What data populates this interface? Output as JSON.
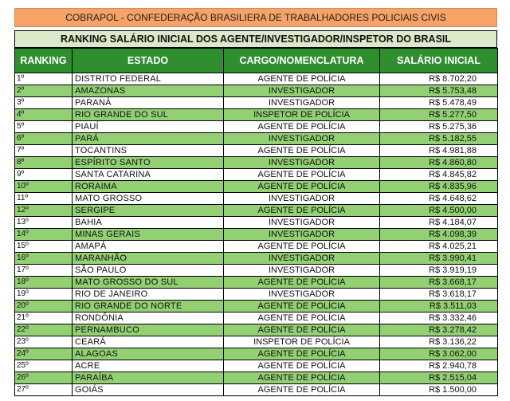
{
  "banner": "COBRAPOL - CONFEDERAÇÃO BRASILIERA DE TRABALHADORES POLICIAIS CIVIS",
  "subtitle": "RANKING SALÁRIO INICIAL DOS AGENTE/INVESTIGADOR/INSPETOR DO BRASIL",
  "headers": [
    "RANKING",
    "ESTADO",
    "CARGO/NOMENCLATURA",
    "SALÁRIO INICIAL"
  ],
  "colors": {
    "green_row": "#93cf73",
    "header": "#2f8f2f",
    "banner": "#f7a266",
    "subtitle": "#dbe8c9"
  },
  "rows": [
    {
      "rank": "1º",
      "estado": "DISTRITO FEDERAL",
      "cargo": "AGENTE DE POLÍCIA",
      "salario": "R$ 8.702,20"
    },
    {
      "rank": "2º",
      "estado": "AMAZONAS",
      "cargo": "INVESTIGADOR",
      "salario": "R$ 5.753,48"
    },
    {
      "rank": "3º",
      "estado": "PARANÁ",
      "cargo": "INVESTIGADOR",
      "salario": "R$ 5.478,49"
    },
    {
      "rank": "4º",
      "estado": "RIO GRANDE DO SUL",
      "cargo": "INSPETOR DE POLÍCIA",
      "salario": "R$ 5.277,50"
    },
    {
      "rank": "5º",
      "estado": "PIAUÍ",
      "cargo": "AGENTE DE POLÍCIA",
      "salario": "R$ 5.275,36"
    },
    {
      "rank": "6º",
      "estado": "PARÁ",
      "cargo": "INVESTIGADOR",
      "salario": "R$ 5.182,55"
    },
    {
      "rank": "7º",
      "estado": "TOCANTINS",
      "cargo": "AGENTE DE POLÍCIA",
      "salario": "R$ 4.981,88"
    },
    {
      "rank": "8º",
      "estado": "ESPÍRITO SANTO",
      "cargo": "INVESTIGADOR",
      "salario": "R$ 4.860,80"
    },
    {
      "rank": "9º",
      "estado": "SANTA CATARINA",
      "cargo": "AGENTE DE POLÍCIA",
      "salario": "R$ 4.845,82"
    },
    {
      "rank": "10º",
      "estado": "RORAIMA",
      "cargo": "AGENTE DE POLÍCIA",
      "salario": "R$ 4.835,96"
    },
    {
      "rank": "11º",
      "estado": "MATO GROSSO",
      "cargo": "INVESTIGADOR",
      "salario": "R$ 4.648,62"
    },
    {
      "rank": "12º",
      "estado": "SERGIPE",
      "cargo": "AGENTE DE POLÍCIA",
      "salario": "R$ 4.500,00"
    },
    {
      "rank": "13º",
      "estado": "BAHIA",
      "cargo": "INVESTIGADOR",
      "salario": "R$ 4.184,07"
    },
    {
      "rank": "14º",
      "estado": "MINAS GERAIS",
      "cargo": "INVESTIGADOR",
      "salario": "R$ 4.098,39"
    },
    {
      "rank": "15º",
      "estado": "AMAPÁ",
      "cargo": "AGENTE DE POLÍCIA",
      "salario": "R$ 4.025,21"
    },
    {
      "rank": "16º",
      "estado": "MARANHÃO",
      "cargo": "INVESTIGADOR",
      "salario": "R$ 3.990,41"
    },
    {
      "rank": "17º",
      "estado": "SÃO PAULO",
      "cargo": "INVESTIGADOR",
      "salario": "R$ 3.919,19"
    },
    {
      "rank": "18º",
      "estado": "MATO GROSSO DO SUL",
      "cargo": "AGENTE DE POLÍCIA",
      "salario": "R$ 3.668,17"
    },
    {
      "rank": "19º",
      "estado": "RIO DE JANEIRO",
      "cargo": "INVESTIGADOR",
      "salario": "R$ 3.618,17"
    },
    {
      "rank": "20º",
      "estado": "RIO GRANDE DO NORTE",
      "cargo": "AGENTE DE POLÍCIA",
      "salario": "R$ 3.511,03"
    },
    {
      "rank": "21º",
      "estado": "RONDÔNIA",
      "cargo": "AGENTE DE POLÍCIA",
      "salario": "R$ 3.332,46"
    },
    {
      "rank": "22º",
      "estado": "PERNAMBUCO",
      "cargo": "AGENTE DE POLÍCIA",
      "salario": "R$ 3.278,42"
    },
    {
      "rank": "23º",
      "estado": "CEARÁ",
      "cargo": "INSPETOR DE POLÍCIA",
      "salario": "R$ 3.136,22"
    },
    {
      "rank": "24º",
      "estado": "ALAGOAS",
      "cargo": "AGENTE DE POLÍCIA",
      "salario": "R$ 3.062,00"
    },
    {
      "rank": "25º",
      "estado": "ACRE",
      "cargo": "AGENTE DE POLÍCIA",
      "salario": "R$ 2.940,78"
    },
    {
      "rank": "26º",
      "estado": "PARAÍBA",
      "cargo": "AGENTE DE POLÍCIA",
      "salario": "R$ 2.515,04"
    },
    {
      "rank": "27º",
      "estado": "GOIÁS",
      "cargo": "AGENTE DE POLÍCIA",
      "salario": "R$ 1.500,00"
    }
  ]
}
